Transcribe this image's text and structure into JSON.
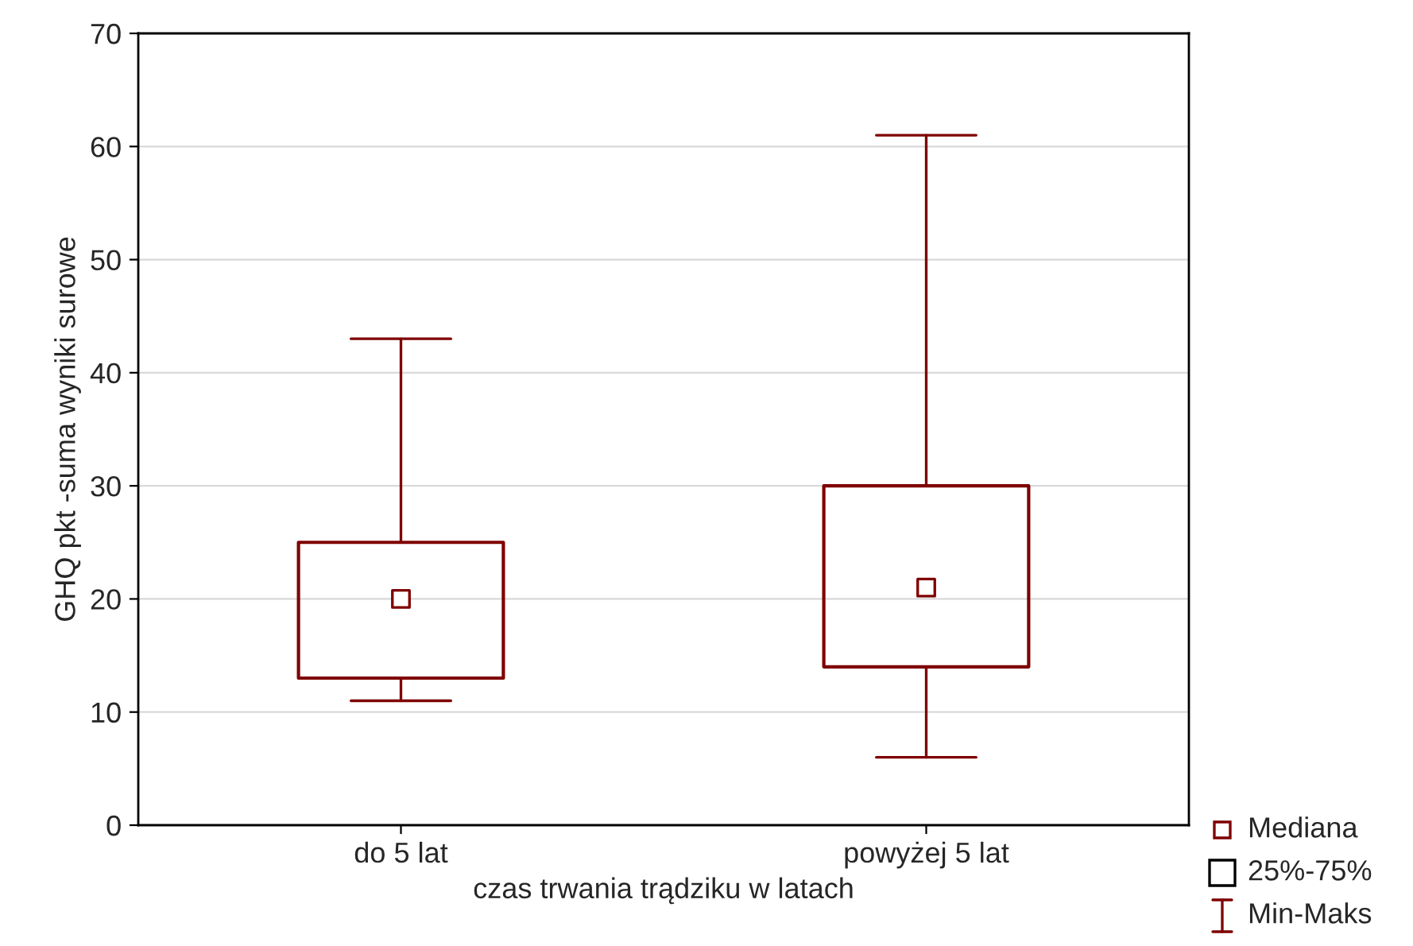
{
  "chart_data": {
    "type": "box",
    "xlabel": "czas trwania trądziku w latach",
    "ylabel": "GHQ pkt -suma wyniki surowe",
    "categories": [
      "do 5 lat",
      "powyżej 5 lat"
    ],
    "series": [
      {
        "color": "#7f0000",
        "boxes": [
          {
            "low": 11,
            "q1": 13,
            "median": 20,
            "q3": 25,
            "high": 43
          },
          {
            "low": 6,
            "q1": 14,
            "median": 21,
            "q3": 30,
            "high": 61
          }
        ]
      }
    ],
    "ylim": [
      0,
      70
    ],
    "yticks": [
      0,
      10,
      20,
      30,
      40,
      50,
      60,
      70
    ],
    "grid": "y",
    "annotations": [
      "Mediana",
      "25%-75%",
      "Min-Maks"
    ]
  }
}
